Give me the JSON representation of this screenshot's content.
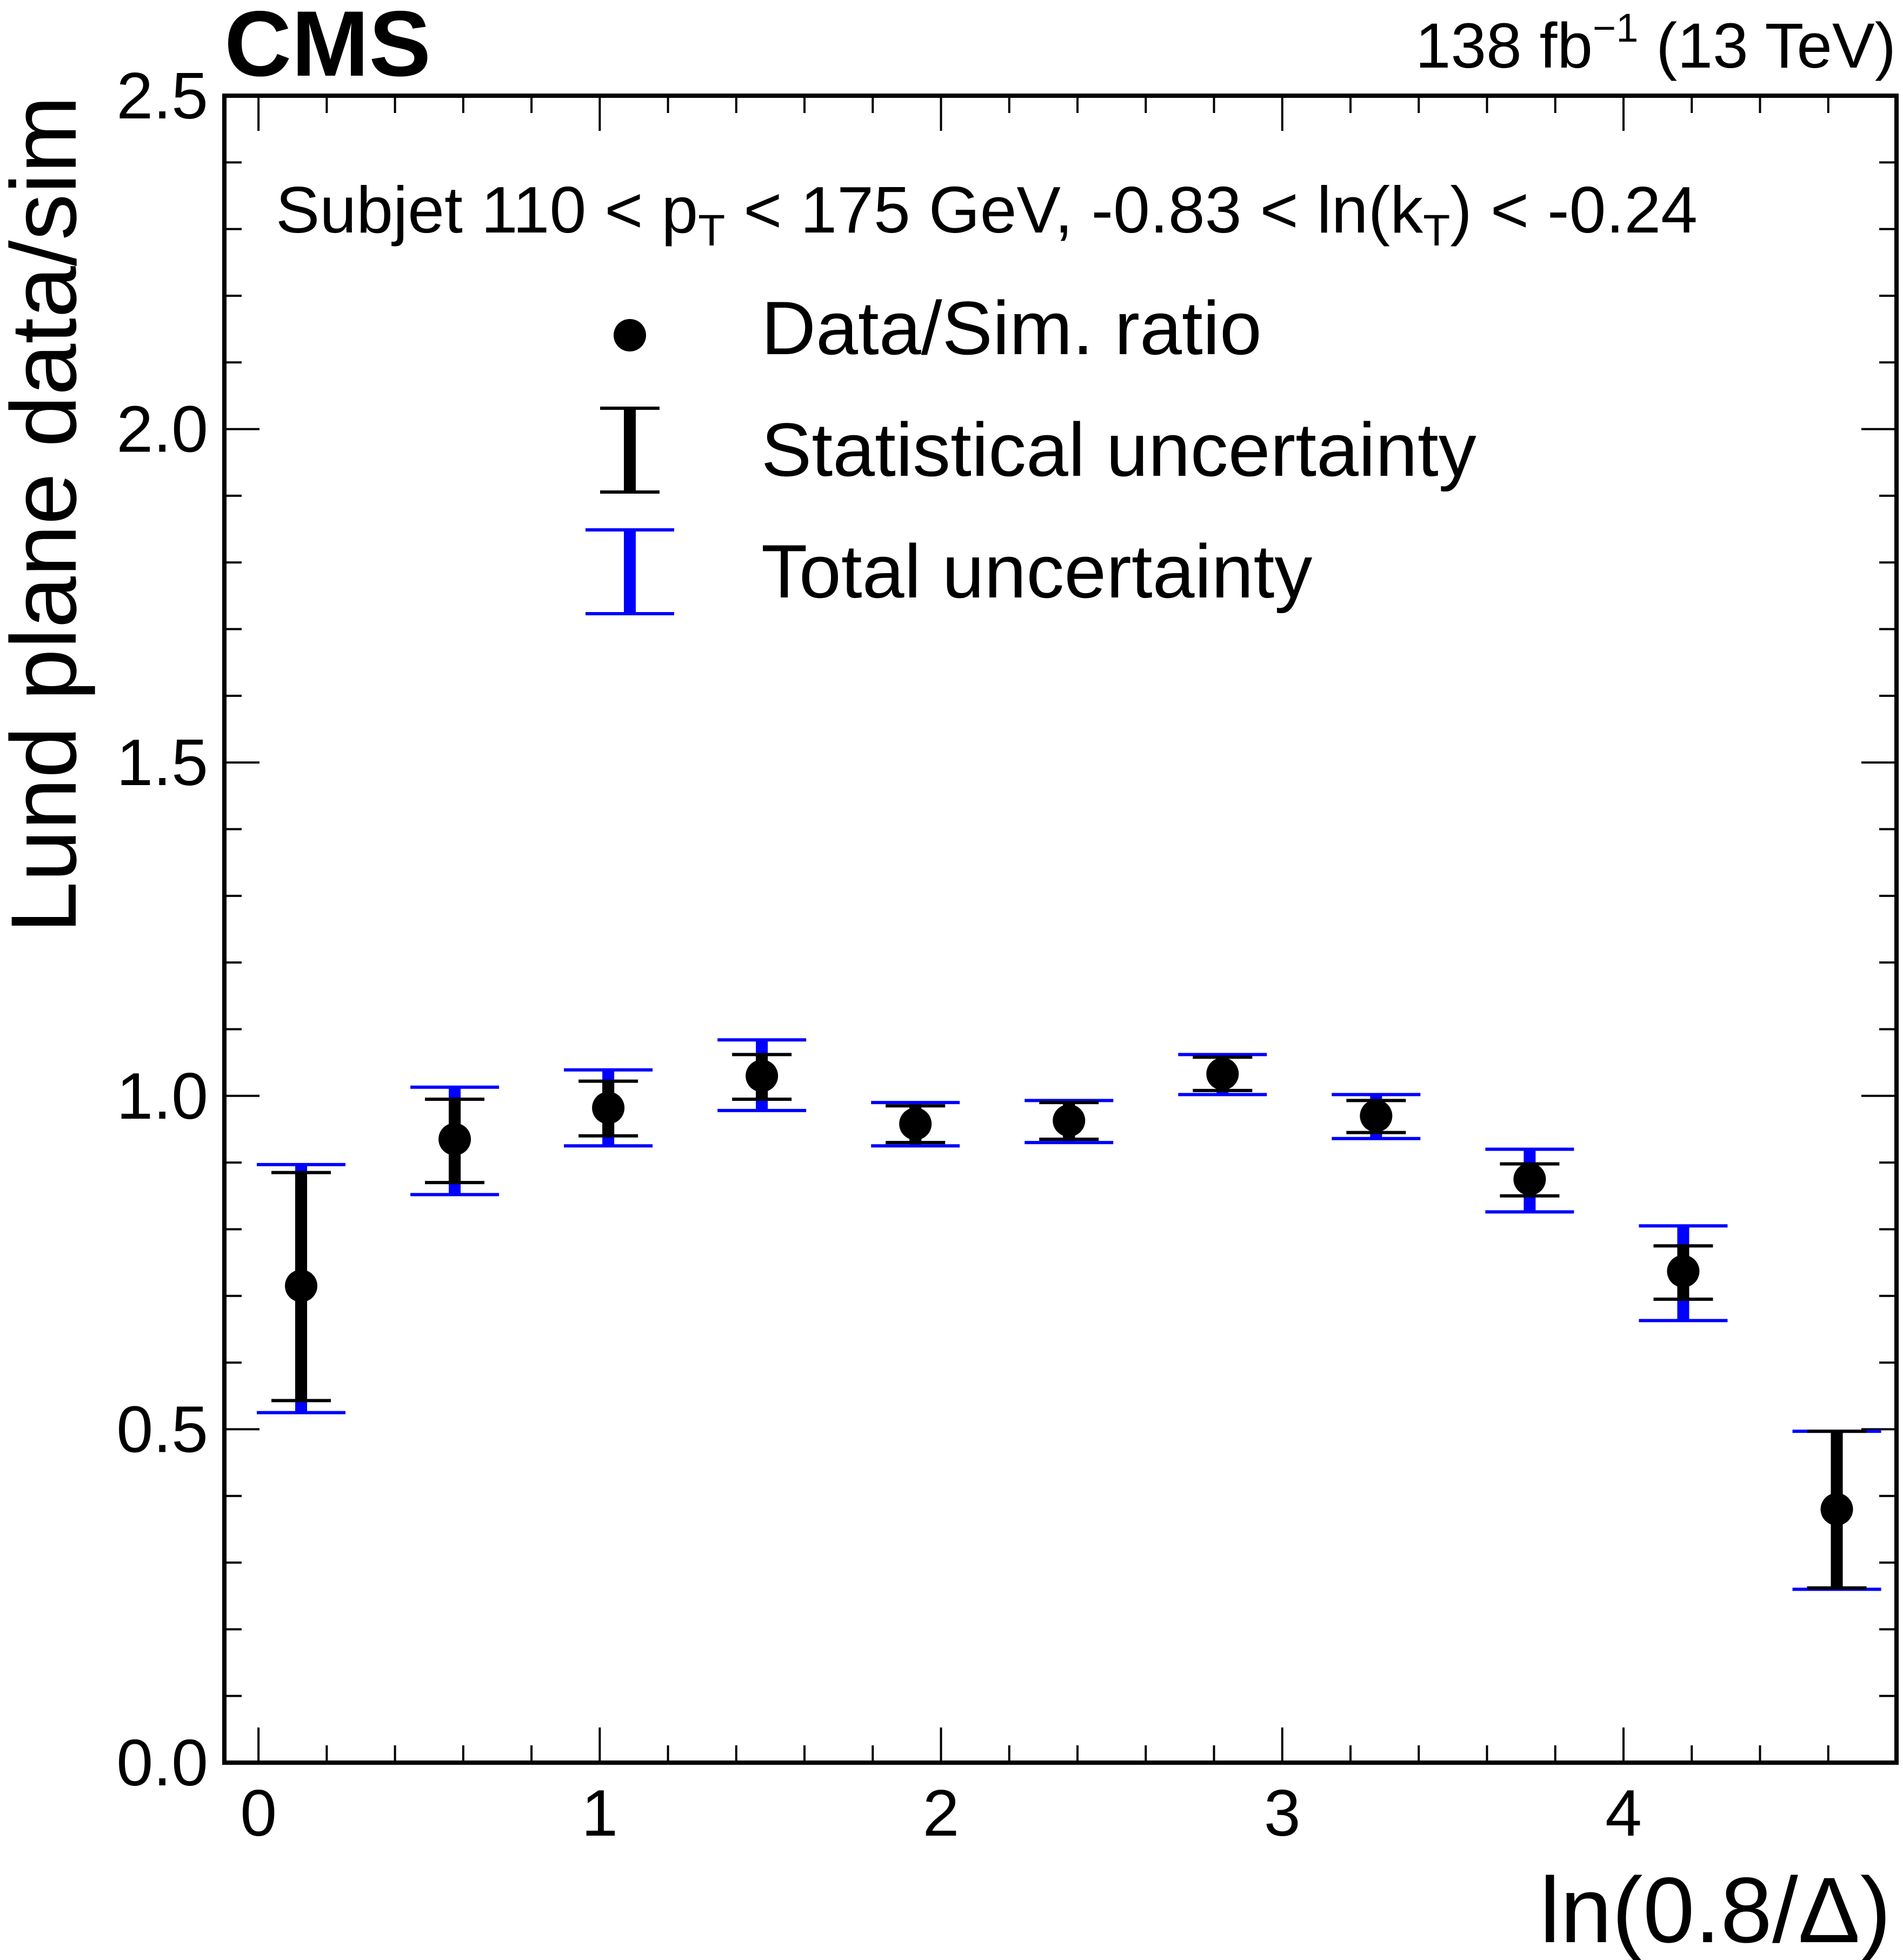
{
  "chart_data": {
    "type": "scatter",
    "experiment": "CMS",
    "lumi": "138",
    "lumi_unit": "fb",
    "lumi_exponent": "−1",
    "energy": "(13 TeV)",
    "title": "",
    "xlabel": "ln(0.8/Δ)",
    "ylabel": "Lund plane data/sim",
    "xlim": [
      -0.1,
      4.8
    ],
    "ylim": [
      0.0,
      2.5
    ],
    "xticks": [
      0,
      1,
      2,
      3,
      4
    ],
    "xtick_labels": [
      "0",
      "1",
      "2",
      "3",
      "4"
    ],
    "yticks": [
      0.0,
      0.5,
      1.0,
      1.5,
      2.0,
      2.5
    ],
    "ytick_labels": [
      "0.0",
      "0.5",
      "1.0",
      "1.5",
      "2.0",
      "2.5"
    ],
    "annotation": {
      "prefix": "Subjet 110 < p",
      "sub1": "T",
      "middle": " < 175 GeV, -0.83 < ln(k",
      "sub2": "T",
      "suffix": ") < -0.24"
    },
    "legend": {
      "position": "top-center",
      "entries": [
        {
          "label": "Data/Sim. ratio",
          "style": "marker",
          "color": "#000000"
        },
        {
          "label": "Statistical uncertainty",
          "style": "errorbar",
          "color": "#000000"
        },
        {
          "label": "Total uncertainty",
          "style": "errorbar",
          "color": "#0000ff"
        }
      ]
    },
    "series": [
      {
        "name": "Data/Sim. ratio",
        "color": "#000000",
        "total_color": "#0000ff",
        "x": [
          0.125,
          0.575,
          1.025,
          1.475,
          1.925,
          2.375,
          2.825,
          3.275,
          3.725,
          4.175,
          4.625
        ],
        "y": [
          0.715,
          0.935,
          0.982,
          1.03,
          0.958,
          0.963,
          1.033,
          0.97,
          0.875,
          0.737,
          0.38
        ],
        "stat_low": [
          0.543,
          0.87,
          0.94,
          0.995,
          0.93,
          0.935,
          1.008,
          0.945,
          0.85,
          0.695,
          0.262
        ],
        "stat_high": [
          0.885,
          0.995,
          1.022,
          1.062,
          0.985,
          0.99,
          1.058,
          0.993,
          0.898,
          0.775,
          0.497
        ],
        "tot_low": [
          0.525,
          0.852,
          0.925,
          0.978,
          0.925,
          0.93,
          1.002,
          0.936,
          0.826,
          0.663,
          0.26
        ],
        "tot_high": [
          0.897,
          1.013,
          1.039,
          1.084,
          0.99,
          0.993,
          1.062,
          1.002,
          0.92,
          0.805,
          0.497
        ]
      }
    ]
  }
}
